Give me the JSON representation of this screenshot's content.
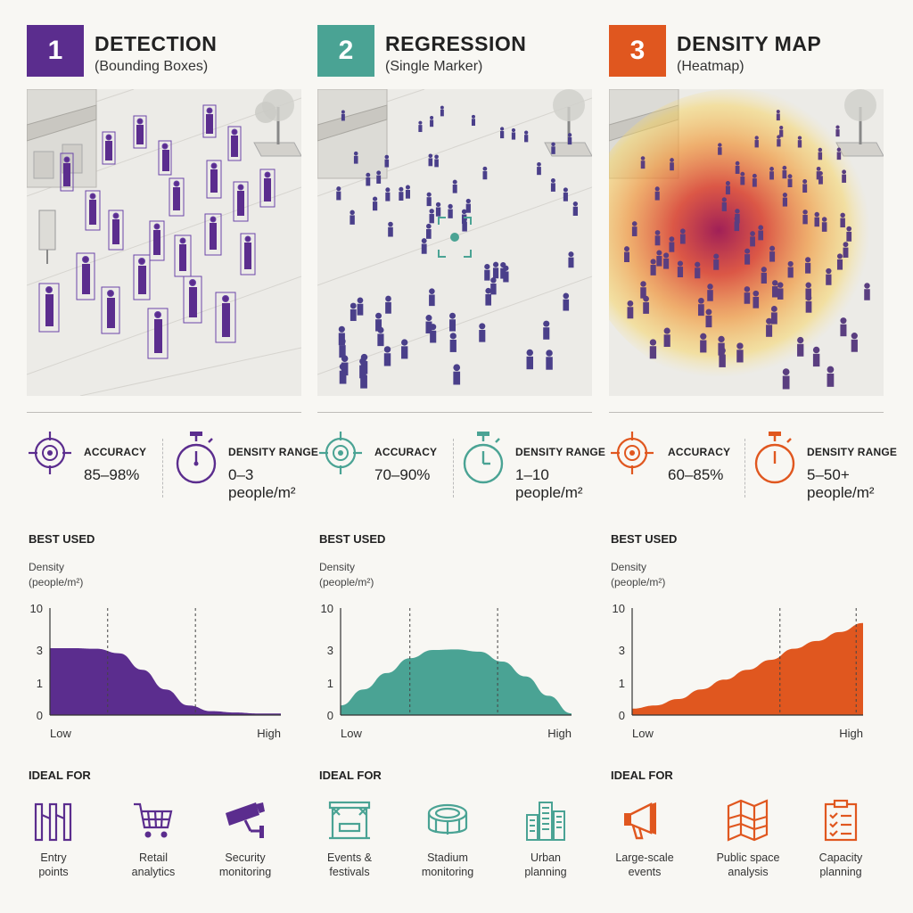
{
  "colors": {
    "detection": "#5b2d8e",
    "regression": "#4aa394",
    "density": "#e0571f"
  },
  "methods": [
    {
      "number": "1",
      "title": "DETECTION",
      "subtitle": "(Bounding Boxes)",
      "accuracy_label": "ACCURACY",
      "accuracy": "85–98%",
      "density_label": "DENSITY RANGE",
      "density_value": "0–3",
      "density_unit": "people/m²",
      "best_used": "BEST USED",
      "chart_ylabel": [
        "Density",
        "(people/m²)"
      ],
      "ideal_for": "IDEAL FOR",
      "uses": [
        {
          "label": "Entry\npoints",
          "icon": "turnstile-icon"
        },
        {
          "label": "Retail\nanalytics",
          "icon": "shopping-cart-icon"
        },
        {
          "label": "Security\nmonitoring",
          "icon": "security-camera-icon"
        }
      ]
    },
    {
      "number": "2",
      "title": "REGRESSION",
      "subtitle": "(Single Marker)",
      "accuracy_label": "ACCURACY",
      "accuracy": "70–90%",
      "density_label": "DENSITY RANGE",
      "density_value": "1–10",
      "density_unit": "people/m²",
      "best_used": "BEST USED",
      "chart_ylabel": [
        "Density",
        "(people/m²)"
      ],
      "ideal_for": "IDEAL FOR",
      "uses": [
        {
          "label": "Events &\nfestivals",
          "icon": "stage-icon"
        },
        {
          "label": "Stadium\nmonitoring",
          "icon": "stadium-icon"
        },
        {
          "label": "Urban\nplanning",
          "icon": "city-buildings-icon"
        }
      ]
    },
    {
      "number": "3",
      "title": "DENSITY MAP",
      "subtitle": "(Heatmap)",
      "accuracy_label": "ACCURACY",
      "accuracy": "60–85%",
      "density_label": "DENSITY RANGE",
      "density_value": "5–50+",
      "density_unit": "people/m²",
      "best_used": "BEST USED",
      "chart_ylabel": [
        "Density",
        "(people/m²)"
      ],
      "ideal_for": "IDEAL FOR",
      "uses": [
        {
          "label": "Large-scale\nevents",
          "icon": "megaphone-icon"
        },
        {
          "label": "Public space\nanalysis",
          "icon": "folded-map-icon"
        },
        {
          "label": "Capacity\nplanning",
          "icon": "clipboard-checklist-icon"
        }
      ]
    }
  ],
  "chart_data": [
    {
      "type": "area",
      "yticks": [
        "0",
        "1",
        "3",
        "10"
      ],
      "xticks": [
        "Low",
        "High"
      ],
      "x": [
        0,
        0.1,
        0.2,
        0.3,
        0.4,
        0.5,
        0.6,
        0.7,
        0.8,
        0.9,
        1.0
      ],
      "values": [
        3.3,
        3.3,
        3.2,
        2.8,
        1.8,
        0.8,
        0.3,
        0.12,
        0.08,
        0.05,
        0.05
      ]
    },
    {
      "type": "area",
      "yticks": [
        "0",
        "1",
        "3",
        "10"
      ],
      "xticks": [
        "Low",
        "High"
      ],
      "x": [
        0,
        0.1,
        0.2,
        0.3,
        0.4,
        0.5,
        0.6,
        0.7,
        0.8,
        0.9,
        1.0
      ],
      "values": [
        0.3,
        0.8,
        1.6,
        2.5,
        3.0,
        3.1,
        2.9,
        2.3,
        1.4,
        0.6,
        0.05
      ]
    },
    {
      "type": "area",
      "yticks": [
        "0",
        "1",
        "3",
        "10"
      ],
      "xticks": [
        "Low",
        "High"
      ],
      "x": [
        0,
        0.1,
        0.2,
        0.3,
        0.4,
        0.5,
        0.6,
        0.7,
        0.8,
        0.9,
        1.0
      ],
      "values": [
        0.2,
        0.3,
        0.5,
        0.8,
        1.2,
        1.8,
        2.4,
        3.2,
        4.5,
        6.0,
        7.5
      ]
    }
  ]
}
